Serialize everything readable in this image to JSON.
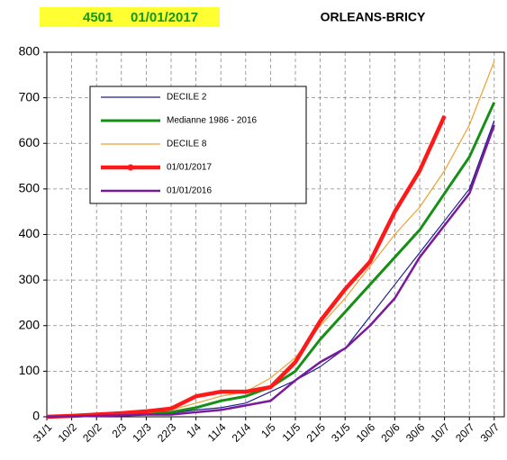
{
  "header": {
    "station_id": "4501",
    "date": "01/01/2017"
  },
  "chart_data": {
    "type": "line",
    "title": "ORLEANS-BRICY",
    "categories": [
      "31/1",
      "10/2",
      "20/2",
      "2/3",
      "12/3",
      "22/3",
      "1/4",
      "11/4",
      "21/4",
      "1/5",
      "11/5",
      "21/5",
      "31/5",
      "10/6",
      "20/6",
      "30/6",
      "10/7",
      "20/7",
      "30/7"
    ],
    "series": [
      {
        "name": "DECILE 2",
        "color": "#1f1f8f",
        "values": [
          0,
          1,
          3,
          4,
          5,
          8,
          15,
          20,
          30,
          55,
          80,
          110,
          150,
          220,
          290,
          360,
          430,
          500,
          650
        ]
      },
      {
        "name": "Medianne 1986 - 2016",
        "color": "#159015",
        "values": [
          0,
          2,
          4,
          5,
          7,
          10,
          20,
          35,
          45,
          65,
          100,
          170,
          230,
          290,
          350,
          410,
          490,
          570,
          690
        ]
      },
      {
        "name": "DECILE 8",
        "color": "#f0a030",
        "values": [
          0,
          2,
          5,
          6,
          8,
          15,
          30,
          45,
          55,
          85,
          130,
          200,
          260,
          330,
          400,
          460,
          540,
          640,
          780
        ]
      },
      {
        "name": "01/01/2017",
        "color": "#ff1a1a",
        "values": [
          0,
          2,
          5,
          8,
          12,
          18,
          45,
          55,
          55,
          65,
          120,
          210,
          280,
          340,
          450,
          540,
          660,
          null,
          null
        ]
      },
      {
        "name": "01/01/2016",
        "color": "#7a1a9a",
        "values": [
          0,
          1,
          2,
          3,
          5,
          5,
          10,
          15,
          25,
          35,
          80,
          120,
          150,
          200,
          260,
          350,
          420,
          490,
          640
        ]
      }
    ],
    "ylim": [
      0,
      800
    ],
    "yticks": [
      0,
      100,
      200,
      300,
      400,
      500,
      600,
      700,
      800
    ],
    "grid": true
  }
}
